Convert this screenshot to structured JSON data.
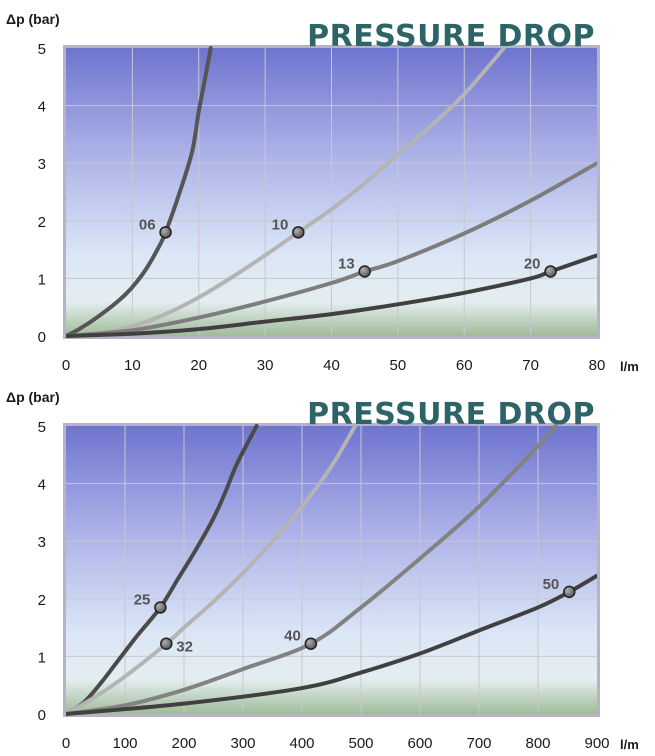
{
  "chart_data": [
    {
      "type": "line",
      "title": "PRESSURE DROP",
      "ylabel": "Δp (bar)",
      "xlabel": "l/m",
      "xlim": [
        0,
        80
      ],
      "ylim": [
        0,
        5
      ],
      "xticks": [
        "0",
        "10",
        "20",
        "30",
        "40",
        "50",
        "60",
        "70",
        "80"
      ],
      "yticks": [
        "0",
        "1",
        "2",
        "3",
        "4",
        "5"
      ],
      "grid": true,
      "series": [
        {
          "name": "06",
          "color": "#555555",
          "x": [
            0,
            2,
            5,
            8,
            10,
            12,
            14,
            15,
            17,
            19,
            20,
            21,
            21.8
          ],
          "y": [
            0,
            0.12,
            0.35,
            0.62,
            0.85,
            1.15,
            1.55,
            1.8,
            2.45,
            3.2,
            3.9,
            4.5,
            5.0
          ],
          "marker": [
            15,
            1.8
          ],
          "label_side": "left"
        },
        {
          "name": "10",
          "color": "#b4b4b4",
          "x": [
            0,
            5,
            10,
            15,
            20,
            25,
            30,
            35,
            40,
            45,
            50,
            55,
            60,
            66
          ],
          "y": [
            0,
            0.05,
            0.17,
            0.38,
            0.67,
            1.02,
            1.4,
            1.8,
            2.2,
            2.65,
            3.15,
            3.65,
            4.2,
            5.0
          ],
          "marker": [
            35,
            1.8
          ],
          "label_side": "left"
        },
        {
          "name": "13",
          "color": "#7d7d7d",
          "x": [
            0,
            10,
            20,
            30,
            40,
            45,
            50,
            60,
            70,
            80
          ],
          "y": [
            0,
            0.1,
            0.32,
            0.6,
            0.92,
            1.12,
            1.3,
            1.78,
            2.35,
            3.0
          ],
          "marker": [
            45,
            1.12
          ],
          "label_side": "left"
        },
        {
          "name": "20",
          "color": "#404040",
          "x": [
            0,
            10,
            20,
            30,
            40,
            50,
            60,
            70,
            73,
            80
          ],
          "y": [
            0,
            0.04,
            0.12,
            0.25,
            0.38,
            0.55,
            0.75,
            1.0,
            1.12,
            1.4
          ],
          "marker": [
            73,
            1.12
          ],
          "label_side": "left"
        }
      ]
    },
    {
      "type": "line",
      "title": "PRESSURE DROP",
      "ylabel": "Δp (bar)",
      "xlabel": "l/m",
      "xlim": [
        0,
        900
      ],
      "ylim": [
        0,
        5
      ],
      "xticks": [
        "0",
        "100",
        "200",
        "300",
        "400",
        "500",
        "600",
        "700",
        "800",
        "900"
      ],
      "yticks": [
        "0",
        "1",
        "2",
        "3",
        "4",
        "5"
      ],
      "grid": true,
      "series": [
        {
          "name": "25",
          "color": "#4a4a4a",
          "x": [
            0,
            30,
            60,
            90,
            120,
            160,
            190,
            220,
            250,
            270,
            290,
            323
          ],
          "y": [
            0,
            0.2,
            0.55,
            0.95,
            1.35,
            1.85,
            2.35,
            2.85,
            3.4,
            3.85,
            4.35,
            5.0
          ],
          "marker": [
            160,
            1.85
          ],
          "label_side": "left"
        },
        {
          "name": "32",
          "color": "#b4b4b4",
          "x": [
            0,
            50,
            100,
            170,
            200,
            250,
            300,
            350,
            400,
            450,
            490
          ],
          "y": [
            0,
            0.3,
            0.65,
            1.22,
            1.5,
            1.95,
            2.45,
            3.0,
            3.6,
            4.3,
            5.0
          ],
          "marker": [
            170,
            1.22
          ],
          "label_side": "right"
        },
        {
          "name": "40",
          "color": "#828282",
          "x": [
            0,
            100,
            200,
            300,
            415,
            500,
            600,
            700,
            800,
            830
          ],
          "y": [
            0,
            0.15,
            0.42,
            0.78,
            1.22,
            1.85,
            2.7,
            3.6,
            4.65,
            5.0
          ],
          "marker": [
            415,
            1.22
          ],
          "label_side": "left"
        },
        {
          "name": "50",
          "color": "#404040",
          "x": [
            0,
            200,
            400,
            500,
            600,
            700,
            800,
            853,
            900
          ],
          "y": [
            0,
            0.18,
            0.45,
            0.72,
            1.05,
            1.45,
            1.85,
            2.12,
            2.4
          ],
          "marker": [
            853,
            2.12
          ],
          "label_side": "left"
        }
      ]
    }
  ]
}
